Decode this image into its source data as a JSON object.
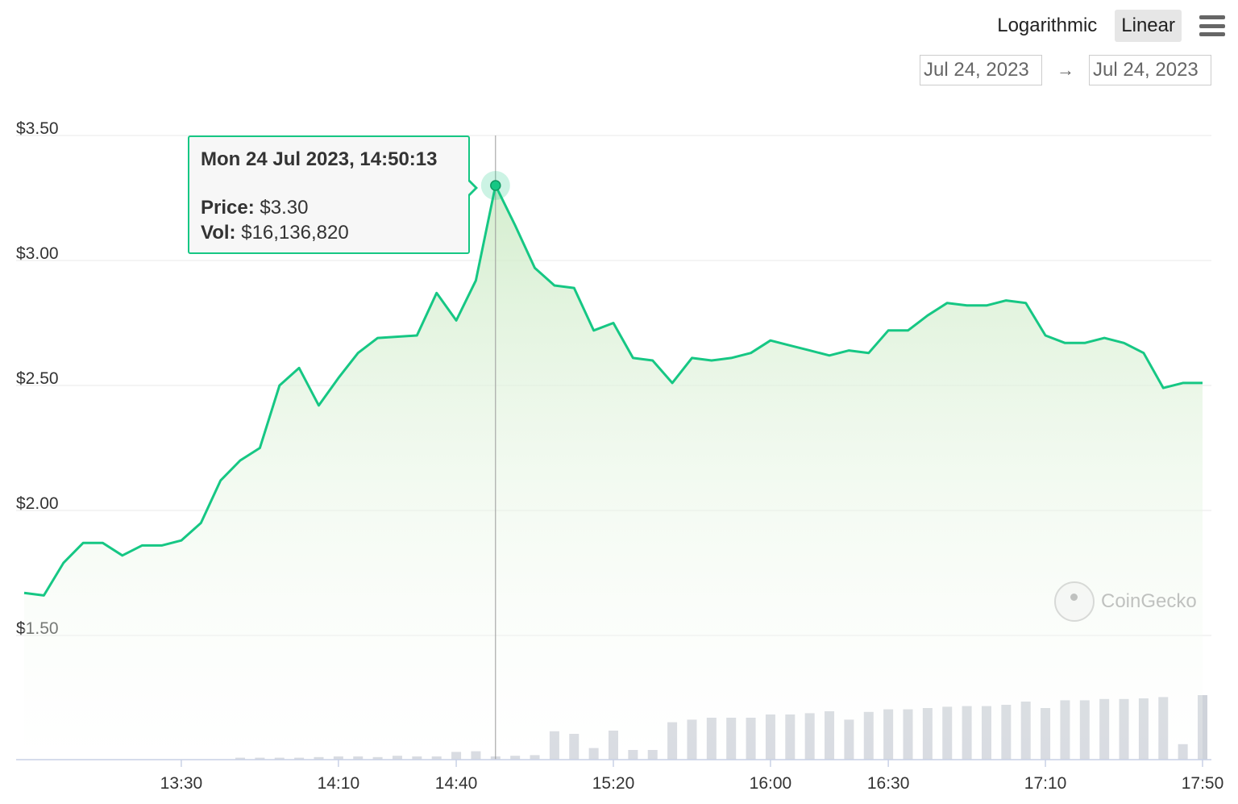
{
  "toolbar": {
    "log_label": "Logarithmic",
    "linear_label": "Linear",
    "active_scale": "Linear",
    "menu_icon": "hamburger-menu-icon"
  },
  "date_range": {
    "from": "Jul 24, 2023",
    "arrow": "→",
    "to": "Jul 24, 2023"
  },
  "tooltip": {
    "date": "Mon 24 Jul 2023, 14:50:13",
    "price_label": "Price:",
    "price_value": "$3.30",
    "vol_label": "Vol:",
    "vol_value": "$16,136,820"
  },
  "watermark": {
    "text": "CoinGecko"
  },
  "colors": {
    "line": "#16c784",
    "area_top": "#d8f0d2",
    "volume_bar": "#cfd3da",
    "grid": "#e9e9e9",
    "crosshair": "#999999"
  },
  "chart_data": {
    "type": "line",
    "title": "",
    "xlabel": "",
    "ylabel": "",
    "x_ticks": [
      "13:30",
      "14:10",
      "14:40",
      "15:20",
      "16:00",
      "16:30",
      "17:10",
      "17:50"
    ],
    "y_ticks": [
      "$1.50",
      "$2.00",
      "$2.50",
      "$3.00",
      "$3.50"
    ],
    "ylim": [
      1.5,
      3.5
    ],
    "grid": true,
    "legend": "none",
    "highlight": {
      "time": "14:50",
      "price": 3.3
    },
    "series": [
      {
        "values": [
          {
            "t": "12:50",
            "p": 1.67
          },
          {
            "t": "12:55",
            "p": 1.66
          },
          {
            "t": "13:00",
            "p": 1.79
          },
          {
            "t": "13:05",
            "p": 1.87
          },
          {
            "t": "13:10",
            "p": 1.87
          },
          {
            "t": "13:15",
            "p": 1.82
          },
          {
            "t": "13:20",
            "p": 1.86
          },
          {
            "t": "13:25",
            "p": 1.86
          },
          {
            "t": "13:30",
            "p": 1.88
          },
          {
            "t": "13:35",
            "p": 1.95
          },
          {
            "t": "13:40",
            "p": 2.12
          },
          {
            "t": "13:45",
            "p": 2.2
          },
          {
            "t": "13:50",
            "p": 2.25
          },
          {
            "t": "13:55",
            "p": 2.5
          },
          {
            "t": "14:00",
            "p": 2.57
          },
          {
            "t": "14:05",
            "p": 2.42
          },
          {
            "t": "14:10",
            "p": 2.53
          },
          {
            "t": "14:15",
            "p": 2.63
          },
          {
            "t": "14:20",
            "p": 2.69
          },
          {
            "t": "14:30",
            "p": 2.7
          },
          {
            "t": "14:35",
            "p": 2.87
          },
          {
            "t": "14:40",
            "p": 2.76
          },
          {
            "t": "14:45",
            "p": 2.92
          },
          {
            "t": "14:50",
            "p": 3.3
          },
          {
            "t": "14:55",
            "p": 3.14
          },
          {
            "t": "15:00",
            "p": 2.97
          },
          {
            "t": "15:05",
            "p": 2.9
          },
          {
            "t": "15:10",
            "p": 2.89
          },
          {
            "t": "15:15",
            "p": 2.72
          },
          {
            "t": "15:20",
            "p": 2.75
          },
          {
            "t": "15:25",
            "p": 2.61
          },
          {
            "t": "15:30",
            "p": 2.6
          },
          {
            "t": "15:35",
            "p": 2.51
          },
          {
            "t": "15:40",
            "p": 2.61
          },
          {
            "t": "15:45",
            "p": 2.6
          },
          {
            "t": "15:50",
            "p": 2.61
          },
          {
            "t": "15:55",
            "p": 2.63
          },
          {
            "t": "16:00",
            "p": 2.68
          },
          {
            "t": "16:05",
            "p": 2.66
          },
          {
            "t": "16:10",
            "p": 2.64
          },
          {
            "t": "16:15",
            "p": 2.62
          },
          {
            "t": "16:20",
            "p": 2.64
          },
          {
            "t": "16:25",
            "p": 2.63
          },
          {
            "t": "16:30",
            "p": 2.72
          },
          {
            "t": "16:35",
            "p": 2.72
          },
          {
            "t": "16:40",
            "p": 2.78
          },
          {
            "t": "16:45",
            "p": 2.83
          },
          {
            "t": "16:50",
            "p": 2.82
          },
          {
            "t": "16:55",
            "p": 2.82
          },
          {
            "t": "17:00",
            "p": 2.84
          },
          {
            "t": "17:05",
            "p": 2.83
          },
          {
            "t": "17:10",
            "p": 2.7
          },
          {
            "t": "17:15",
            "p": 2.67
          },
          {
            "t": "17:20",
            "p": 2.67
          },
          {
            "t": "17:25",
            "p": 2.69
          },
          {
            "t": "17:30",
            "p": 2.67
          },
          {
            "t": "17:35",
            "p": 2.63
          },
          {
            "t": "17:40",
            "p": 2.49
          },
          {
            "t": "17:45",
            "p": 2.51
          },
          {
            "t": "17:50",
            "p": 2.51
          }
        ]
      }
    ],
    "volume": [
      0,
      0,
      0,
      0,
      0,
      0,
      0,
      0,
      0,
      0,
      0,
      0.03,
      0.03,
      0.03,
      0.03,
      0.04,
      0.05,
      0.05,
      0.04,
      0.06,
      0.05,
      0.05,
      0.12,
      0.13,
      0.05,
      0.06,
      0.07,
      0.44,
      0.4,
      0.18,
      0.45,
      0.15,
      0.15,
      0.58,
      0.62,
      0.65,
      0.65,
      0.65,
      0.7,
      0.7,
      0.72,
      0.75,
      0.62,
      0.74,
      0.78,
      0.78,
      0.8,
      0.82,
      0.83,
      0.83,
      0.85,
      0.9,
      0.8,
      0.92,
      0.92,
      0.94,
      0.94,
      0.95,
      0.97,
      0.24,
      1.0
    ]
  }
}
